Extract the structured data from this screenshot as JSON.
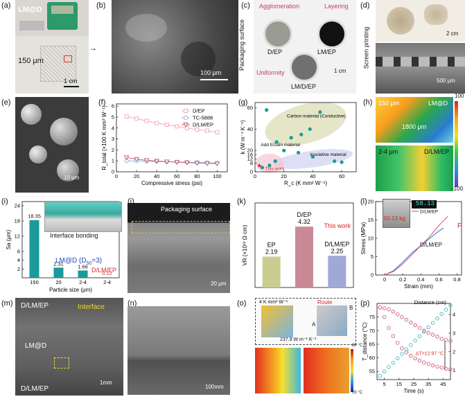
{
  "panels": {
    "a": {
      "label": "(a)",
      "sample": "LM@D",
      "thickness": "150 μm",
      "scale": "1 cm"
    },
    "b": {
      "label": "(b)",
      "scale": "100 μm"
    },
    "c": {
      "label": "(c)",
      "side": "Packaging surface",
      "agg": "Agglomeration",
      "layer": "Layering",
      "uni": "Uniformity",
      "s1": "D/EP",
      "s2": "LM/EP",
      "s3": "LM/D/EP",
      "scale": "1 cm"
    },
    "d": {
      "label": "(d)",
      "side": "Screen printing",
      "scale1": "2 cm",
      "scale2": "500 μm"
    },
    "e": {
      "label": "(e)",
      "scale": "10 μm"
    },
    "f": {
      "label": "(f)"
    },
    "g": {
      "label": "(g)"
    },
    "h": {
      "label": "(h)",
      "top_left": "150 μm",
      "top_right": "LM@D",
      "width": "1800 μm",
      "bot_left": "2-4 μm",
      "bot_right": "D/LM/EP",
      "cb_max": "100",
      "cb_min": "-100"
    },
    "i": {
      "label": "(i)",
      "inset": "Interface bonding",
      "note": "LM@D (D",
      "note_sub": "50",
      "note_end": "=3)",
      "red": "D/LM/EP"
    },
    "j": {
      "label": "(j)",
      "surface": "Packaging surface",
      "scale": "20 μm"
    },
    "k": {
      "label": "(k)"
    },
    "l": {
      "label": "(l)",
      "weight": "50.13 kg",
      "readout": "58.13",
      "sample": "D/LM/EP",
      "force": "F"
    },
    "m": {
      "label": "(m)",
      "top": "D/LM/EP",
      "interface": "Interface",
      "mid": "LM@D",
      "bot": "D/LM/EP",
      "scale": "1mm"
    },
    "n": {
      "label": "(n)",
      "scale": "100mm"
    },
    "o": {
      "label": "(o)",
      "k1": "4 K mm² W⁻¹",
      "k2": "237.9 W m⁻¹ K⁻¹",
      "route": "Route",
      "A": "A",
      "B": "B",
      "tmin": "55 °C",
      "tmax": "80 °C"
    },
    "p": {
      "label": "(p)"
    }
  },
  "chart_data": [
    {
      "id": "f",
      "type": "line",
      "xlabel": "Compressive stress (psi)",
      "ylabel": "R_total (×100 K mm² W⁻¹)",
      "xlim": [
        0,
        110
      ],
      "ylim": [
        0,
        6.2
      ],
      "xticks": [
        0,
        20,
        40,
        60,
        80,
        100
      ],
      "yticks": [
        0,
        1,
        2,
        3,
        4,
        5,
        6
      ],
      "x": [
        10,
        20,
        30,
        40,
        50,
        60,
        70,
        80,
        90,
        100
      ],
      "series": [
        {
          "name": "D/EP",
          "color": "#f4a3b0",
          "marker": "square",
          "values": [
            5.05,
            4.85,
            4.65,
            4.45,
            4.3,
            4.15,
            4.0,
            3.85,
            3.75,
            3.62
          ]
        },
        {
          "name": "TC-5888",
          "color": "#7bb6d9",
          "marker": "circle",
          "values": [
            1.0,
            0.98,
            0.96,
            0.94,
            0.92,
            0.9,
            0.88,
            0.86,
            0.84,
            0.82
          ]
        },
        {
          "name": "D/LM/EP",
          "color": "#c0506a",
          "marker": "triangle",
          "values": [
            1.3,
            1.15,
            1.05,
            0.98,
            0.92,
            0.88,
            0.84,
            0.8,
            0.76,
            0.73
          ]
        }
      ],
      "legend": "top-right"
    },
    {
      "id": "g",
      "type": "scatter",
      "xlabel": "R_c (K mm² W⁻¹)",
      "ylabel": "k (W m⁻¹ K⁻¹)",
      "xlim": [
        0,
        70
      ],
      "ylim": [
        0,
        65
      ],
      "xticks": [
        0,
        20,
        40,
        60
      ],
      "yticks": [
        0,
        8,
        12,
        16,
        20,
        40,
        60
      ],
      "annotations": [
        "Carbon material (Conductive)",
        "Add EGaIn material",
        "Insulative material",
        "This work"
      ],
      "points": [
        [
          8,
          58
        ],
        [
          15,
          28
        ],
        [
          25,
          32
        ],
        [
          32,
          35
        ],
        [
          38,
          40
        ],
        [
          45,
          56
        ],
        [
          20,
          20
        ],
        [
          30,
          18
        ],
        [
          40,
          14
        ],
        [
          55,
          10
        ],
        [
          60,
          9
        ],
        [
          14,
          10
        ],
        [
          10,
          6
        ],
        [
          5,
          4
        ]
      ]
    },
    {
      "id": "i",
      "type": "bar",
      "xlabel": "Particle size (μm)",
      "ylabel": "Sa (μm)",
      "categories": [
        "150",
        "20",
        "2-4",
        "2-4"
      ],
      "values": [
        18.35,
        2.31,
        1.66,
        0.12
      ],
      "data_labels": [
        "18.35",
        "2.31",
        "1.66",
        "0.12"
      ],
      "yticks": [
        2,
        4,
        6,
        12,
        18,
        24
      ]
    },
    {
      "id": "k",
      "type": "bar",
      "ylabel": "VR (×10¹³ Ω·cm)",
      "categories": [
        "EP",
        "D/EP",
        "D/LM/EP"
      ],
      "values": [
        2.19,
        4.32,
        2.25
      ],
      "data_labels": [
        "2.19",
        "4.32",
        "2.25"
      ],
      "ylim": [
        0,
        6
      ],
      "annotations": [
        "This work"
      ]
    },
    {
      "id": "l",
      "type": "line",
      "xlabel": "Strain (mm)",
      "ylabel": "Stress (MPa)",
      "xlim": [
        -0.1,
        0.85
      ],
      "ylim": [
        0,
        20
      ],
      "xticks": [
        0.0,
        0.2,
        0.4,
        0.6,
        0.8
      ],
      "yticks": [
        0,
        5,
        10,
        15,
        20
      ],
      "series": [
        {
          "name": "EP",
          "color": "#2b6cc4",
          "x": [
            0.0,
            0.1,
            0.2,
            0.3,
            0.4,
            0.5,
            0.6,
            0.65
          ],
          "values": [
            0,
            1.2,
            3.5,
            6.0,
            8.0,
            10.0,
            12.0,
            12.8
          ]
        },
        {
          "name": "D/LM/EP",
          "color": "#d64a6a",
          "x": [
            0.0,
            0.1,
            0.2,
            0.3,
            0.4,
            0.5,
            0.6,
            0.7
          ],
          "values": [
            0,
            1.0,
            3.0,
            5.5,
            8.0,
            10.5,
            13.5,
            16.0
          ]
        }
      ],
      "legend": "top-left"
    },
    {
      "id": "p",
      "type": "line",
      "title": "Distance (cm)",
      "xlabel": "Time (s)",
      "ylabel": "T_distance (°C)",
      "y2label": "",
      "xlim": [
        0,
        50
      ],
      "ylim": [
        52,
        80
      ],
      "y2lim": [
        0.5,
        4.6
      ],
      "xticks": [
        5,
        15,
        25,
        35,
        45
      ],
      "yticks": [
        55,
        60,
        65,
        70,
        75
      ],
      "y2ticks": [
        1,
        2,
        3,
        4
      ],
      "series": [
        {
          "name": "T upper",
          "color": "#d25b7a",
          "x": [
            2,
            5,
            8,
            11,
            14,
            17,
            20,
            23,
            26,
            29,
            32,
            35,
            38,
            41,
            44,
            47,
            50
          ],
          "values": [
            78.5,
            78.2,
            77.8,
            77.0,
            76.0,
            75.0,
            74.0,
            73.0,
            72.0,
            71.0,
            70.0,
            69.2,
            68.5,
            67.8,
            67.0,
            66.6,
            66.2
          ]
        },
        {
          "name": "T lower",
          "color": "#d25b7a",
          "x": [
            2,
            5,
            8,
            11,
            14,
            17,
            20,
            23,
            26,
            29,
            32,
            35,
            38,
            41,
            44,
            47,
            50
          ],
          "values": [
            78.5,
            75.0,
            71.0,
            68.0,
            65.5,
            63.5,
            62.0,
            60.8,
            59.8,
            59.0,
            58.3,
            57.8,
            57.2,
            56.8,
            56.4,
            56.0,
            55.8
          ]
        },
        {
          "name": "Distance",
          "color": "#49b6c8",
          "axis": "right",
          "x": [
            2,
            50
          ],
          "values": [
            0.7,
            4.5
          ]
        }
      ],
      "annotations": [
        "ΔT=12.97 °C"
      ]
    }
  ]
}
